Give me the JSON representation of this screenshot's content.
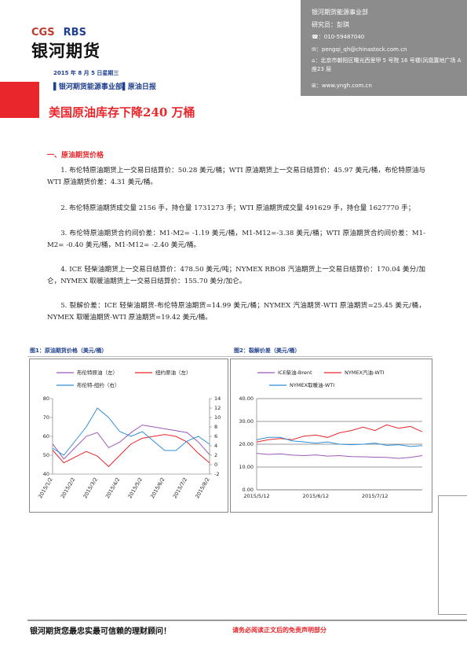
{
  "header": {
    "logo": {
      "brand1": "CGS",
      "brand2": "RBS",
      "name": "银河期货"
    },
    "contact": {
      "dept": "银河期货能源事业部",
      "researcher": "研究员：彭琪",
      "phone": "010-59487040",
      "email": "pengqi_qh@chinastock.com.cn",
      "address": "北京市朝阳区曙光西里甲 5 号院 16 号楼(凤凰置地广场 A 座23 层",
      "website": "www.yngh.com.cn"
    },
    "date": "2015 年 8 月 5 日星期三",
    "dept_line": "▌银河期货能源事业部▌原油日报",
    "title": "美国原油库存下降240 万桶"
  },
  "section": {
    "heading": "一、原油期货价格",
    "paragraphs": [
      "1. 布伦特原油期货上一交易日结算价：50.28 美元/桶；WTI 原油期货上一交易日结算价：45.97 美元/桶，布伦特原油与 WTI 原油期货价差：4.31 美元/桶。",
      "2. 布伦特原油期货成交量 2156 手，持仓量 1731273 手；WTI 原油期货成交量 491629 手，持仓量 1627770 手；",
      "3. 布伦特原油期货合约间价差：M1-M2= -1.19 美元/桶，M1-M12=-3.38 美元/桶；WTI 原油期货合约间价差：M1-M2= -0.40 美元/桶，M1-M12= -2.40 美元/桶。",
      "4. ICE 轻柴油期货上一交易日结算价：478.50 美元/吨；NYMEX RBOB 汽油期货上一交易日结算价：170.04 美分/加仑，NYMEX 取暖油期货上一交易日结算价：155.70 美分/加仑。",
      "5. 裂解价差：ICE 轻柴油期货-布伦特原油期货=14.99 美元/桶；NYMEX 汽油期货-WTI 原油期货=25.45 美元/桶，NYMEX 取暖油期货-WTI 原油期货=19.42 美元/桶。"
    ]
  },
  "figures": [
    {
      "caption": "图1：原油期货价格（美元/桶）",
      "chart": {
        "type": "line",
        "categories": [
          "2015/1/2",
          null,
          "2015/2/2",
          null,
          "2015/3/2",
          null,
          "2015/4/2",
          null,
          "2015/5/2",
          null,
          "2015/6/2",
          null,
          "2015/7/2",
          null,
          "2015/8/2"
        ],
        "series": [
          {
            "name": "布伦特原油（左）",
            "color": "#9b59b6",
            "values": [
              56,
              48,
              54,
              60,
              62,
              54,
              57,
              62,
              66,
              65,
              64,
              63,
              62,
              57,
              50.28
            ]
          },
          {
            "name": "纽约原油（左）",
            "color": "#e8262b",
            "values": [
              52.7,
              46,
              49,
              52,
              49.5,
              44,
              50,
              56,
              59,
              60,
              61,
              60,
              57,
              51,
              45.97
            ]
          },
          {
            "name": "布伦特-纽约（右）",
            "color": "#2f8fd8",
            "axis": "y2",
            "values": [
              3.5,
              2,
              5,
              8,
              12,
              10,
              7,
              6,
              7,
              5,
              3,
              3,
              5,
              6,
              4.31
            ]
          }
        ],
        "ylim": [
          40,
          80
        ],
        "yticks": [
          40,
          50,
          60,
          70,
          80
        ],
        "y2lim": [
          -2,
          14
        ],
        "y2ticks": [
          -2,
          0,
          2,
          4,
          6,
          8,
          10,
          12,
          14
        ],
        "grid": false
      }
    },
    {
      "caption": "图2：裂解价差（美元/桶）",
      "chart": {
        "type": "line",
        "categories": [
          "2015/5/12",
          null,
          null,
          null,
          null,
          "2015/6/12",
          null,
          null,
          null,
          null,
          "2015/7/12",
          null,
          null,
          null,
          null
        ],
        "series": [
          {
            "name": "ICE柴油-Brent",
            "color": "#9b59b6",
            "values": [
              16,
              15.5,
              15.8,
              15.2,
              15,
              15.3,
              14.8,
              15,
              14.6,
              14.5,
              14.3,
              14.2,
              13.8,
              14.2,
              14.99
            ]
          },
          {
            "name": "NYMEX汽油-WTI",
            "color": "#e8262b",
            "values": [
              21,
              22,
              22.5,
              22,
              23.5,
              24,
              23,
              25,
              26,
              27.5,
              26,
              28.5,
              27,
              27.8,
              25.45
            ]
          },
          {
            "name": "NYMEX取暖油-WTI",
            "color": "#2f8fd8",
            "values": [
              22,
              23,
              23,
              21.5,
              21,
              20.5,
              21,
              20,
              19.8,
              20,
              20.5,
              19.5,
              19.8,
              19,
              19.42
            ]
          }
        ],
        "ylim": [
          0,
          40
        ],
        "yticks": [
          {
            "value": 0,
            "label": "0.00"
          },
          {
            "value": 10,
            "label": "10.00"
          },
          {
            "value": 20,
            "label": "20.00"
          },
          {
            "value": 30,
            "label": "30.00"
          },
          {
            "value": 40,
            "label": "40.00"
          }
        ],
        "grid": true
      }
    }
  ],
  "footer": {
    "slogan": "银河期货您最忠实最可信赖的理财顾问！",
    "disclaimer": "请务必阅读正文后的免责声明部分"
  }
}
